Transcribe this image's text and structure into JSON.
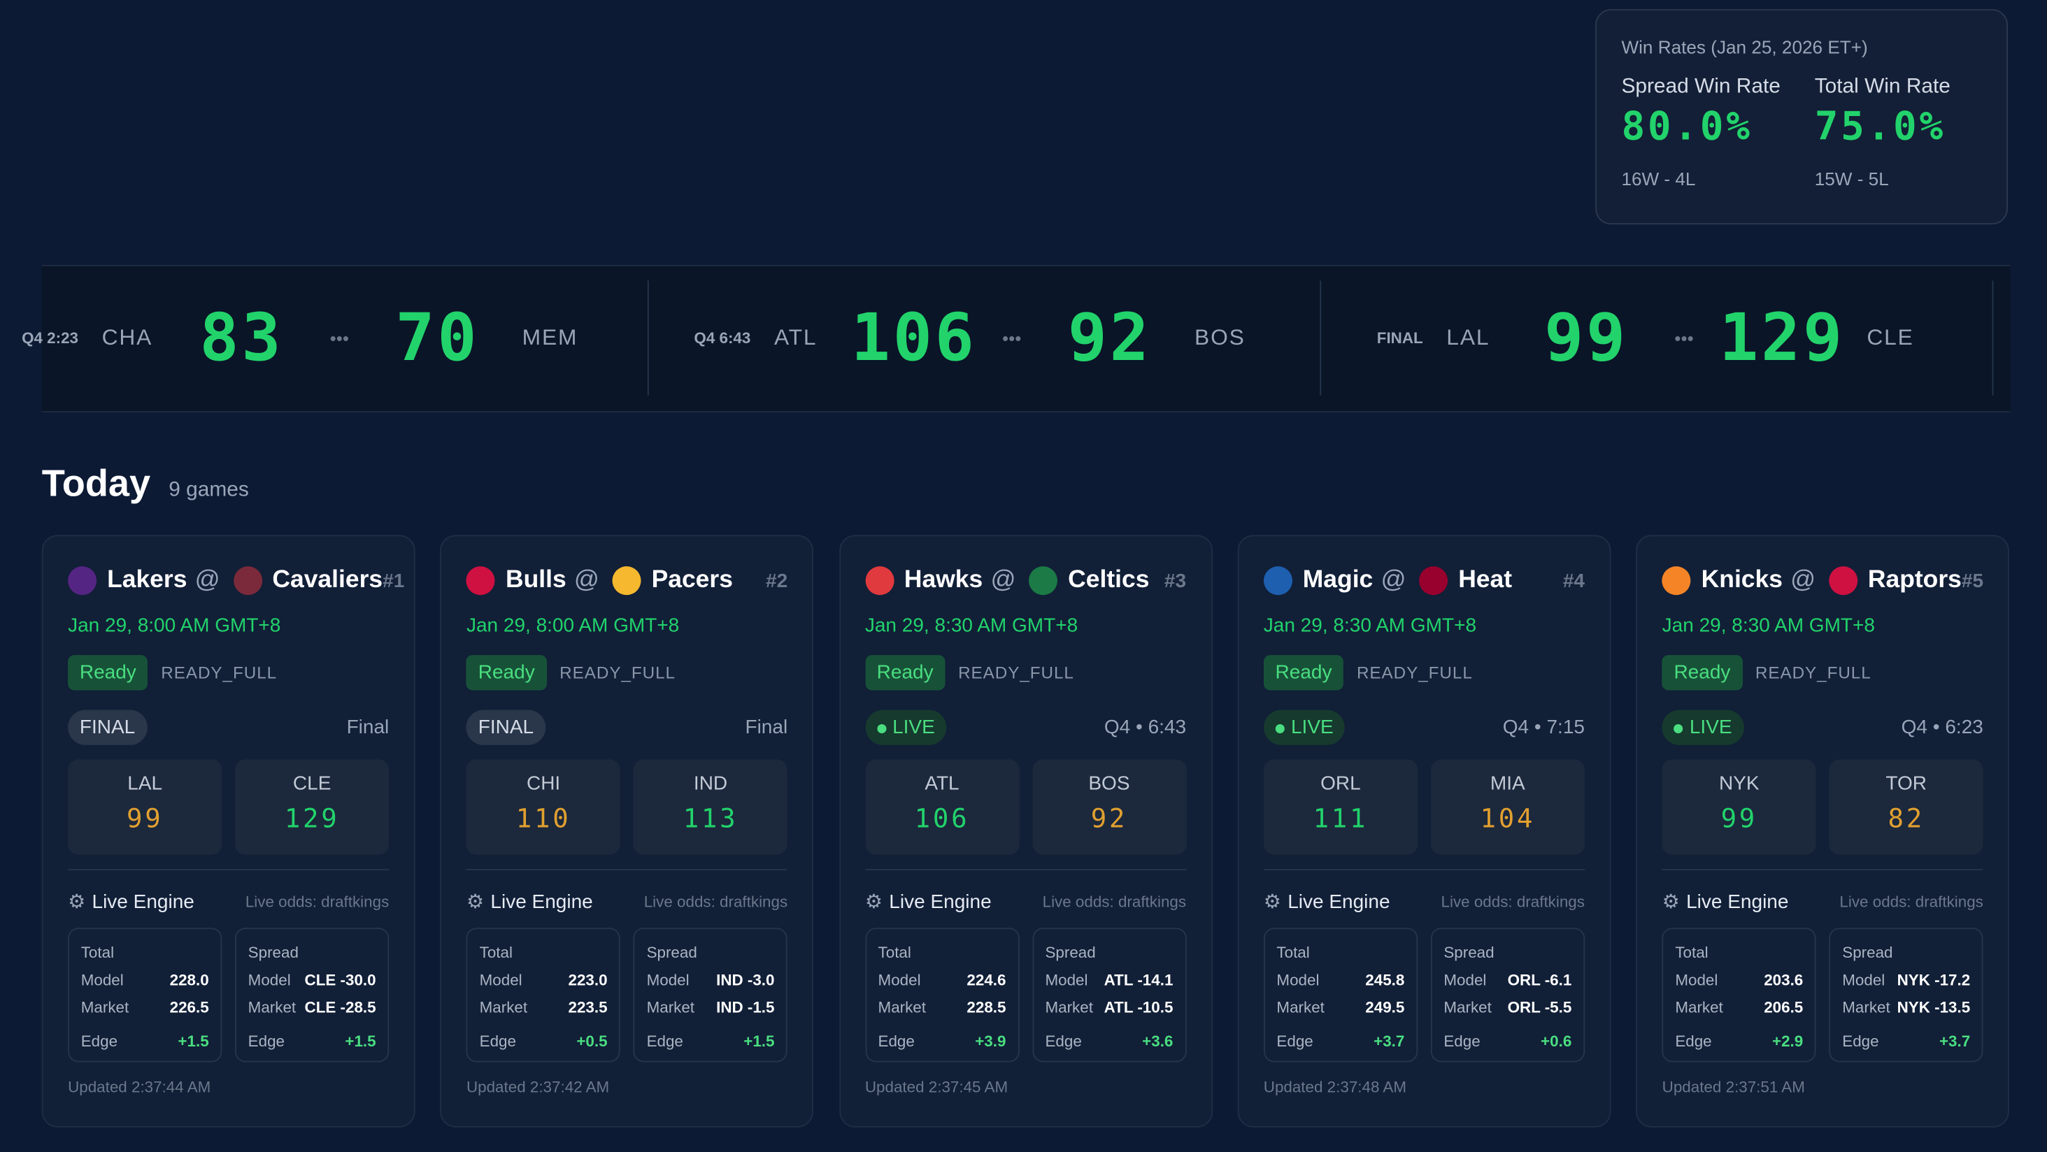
{
  "win_rates": {
    "title": "Win Rates (Jan 25, 2026 ET+)",
    "spread": {
      "label": "Spread Win Rate",
      "value": "80.0%",
      "record": "16W - 4L"
    },
    "total": {
      "label": "Total Win Rate",
      "value": "75.0%",
      "record": "15W - 5L"
    }
  },
  "ticker": [
    {
      "status": "Q4 2:23",
      "away": "CHA",
      "away_score": 83,
      "separator": "•••",
      "home_score": 70,
      "home": "MEM"
    },
    {
      "status": "Q4 6:43",
      "away": "ATL",
      "away_score": 106,
      "separator": "•••",
      "home_score": 92,
      "home": "BOS"
    },
    {
      "status": "FINAL",
      "away": "LAL",
      "away_score": 99,
      "separator": "•••",
      "home_score": 129,
      "home": "CLE"
    }
  ],
  "today": {
    "title": "Today",
    "count": "9 games"
  },
  "labels": {
    "engine": "Live Engine",
    "odds": "Live odds: draftkings",
    "at": "@",
    "total": "Total",
    "spread": "Spread",
    "model": "Model",
    "market": "Market",
    "edge": "Edge"
  },
  "games": [
    {
      "away": "Lakers",
      "home": "Cavaliers",
      "rank": "#1",
      "time": "Jan 29, 8:00 AM GMT+8",
      "badge": "Ready",
      "ready_state": "READY_FULL",
      "status": "FINAL",
      "clock": "Final",
      "away_abbr": "LAL",
      "away_score": 99,
      "home_abbr": "CLE",
      "home_score": 129,
      "total": {
        "model": "228.0",
        "market": "226.5",
        "edge": "+1.5"
      },
      "spread": {
        "model": "CLE -30.0",
        "market": "CLE -28.5",
        "edge": "+1.5"
      },
      "updated": "Updated 2:37:44 AM"
    },
    {
      "away": "Bulls",
      "home": "Pacers",
      "rank": "#2",
      "time": "Jan 29, 8:00 AM GMT+8",
      "badge": "Ready",
      "ready_state": "READY_FULL",
      "status": "FINAL",
      "clock": "Final",
      "away_abbr": "CHI",
      "away_score": 110,
      "home_abbr": "IND",
      "home_score": 113,
      "total": {
        "model": "223.0",
        "market": "223.5",
        "edge": "+0.5"
      },
      "spread": {
        "model": "IND -3.0",
        "market": "IND -1.5",
        "edge": "+1.5"
      },
      "updated": "Updated 2:37:42 AM"
    },
    {
      "away": "Hawks",
      "home": "Celtics",
      "rank": "#3",
      "time": "Jan 29, 8:30 AM GMT+8",
      "badge": "Ready",
      "ready_state": "READY_FULL",
      "status": "LIVE",
      "clock": "Q4 • 6:43",
      "away_abbr": "ATL",
      "away_score": 106,
      "home_abbr": "BOS",
      "home_score": 92,
      "total": {
        "model": "224.6",
        "market": "228.5",
        "edge": "+3.9"
      },
      "spread": {
        "model": "ATL -14.1",
        "market": "ATL -10.5",
        "edge": "+3.6"
      },
      "updated": "Updated 2:37:45 AM"
    },
    {
      "away": "Magic",
      "home": "Heat",
      "rank": "#4",
      "time": "Jan 29, 8:30 AM GMT+8",
      "badge": "Ready",
      "ready_state": "READY_FULL",
      "status": "LIVE",
      "clock": "Q4 • 7:15",
      "away_abbr": "ORL",
      "away_score": 111,
      "home_abbr": "MIA",
      "home_score": 104,
      "total": {
        "model": "245.8",
        "market": "249.5",
        "edge": "+3.7"
      },
      "spread": {
        "model": "ORL -6.1",
        "market": "ORL -5.5",
        "edge": "+0.6"
      },
      "updated": "Updated 2:37:48 AM"
    },
    {
      "away": "Knicks",
      "home": "Raptors",
      "rank": "#5",
      "time": "Jan 29, 8:30 AM GMT+8",
      "badge": "Ready",
      "ready_state": "READY_FULL",
      "status": "LIVE",
      "clock": "Q4 • 6:23",
      "away_abbr": "NYK",
      "away_score": 99,
      "home_abbr": "TOR",
      "home_score": 82,
      "total": {
        "model": "203.6",
        "market": "206.5",
        "edge": "+2.9"
      },
      "spread": {
        "model": "NYK -17.2",
        "market": "NYK -13.5",
        "edge": "+3.7"
      },
      "updated": "Updated 2:37:51 AM"
    }
  ]
}
